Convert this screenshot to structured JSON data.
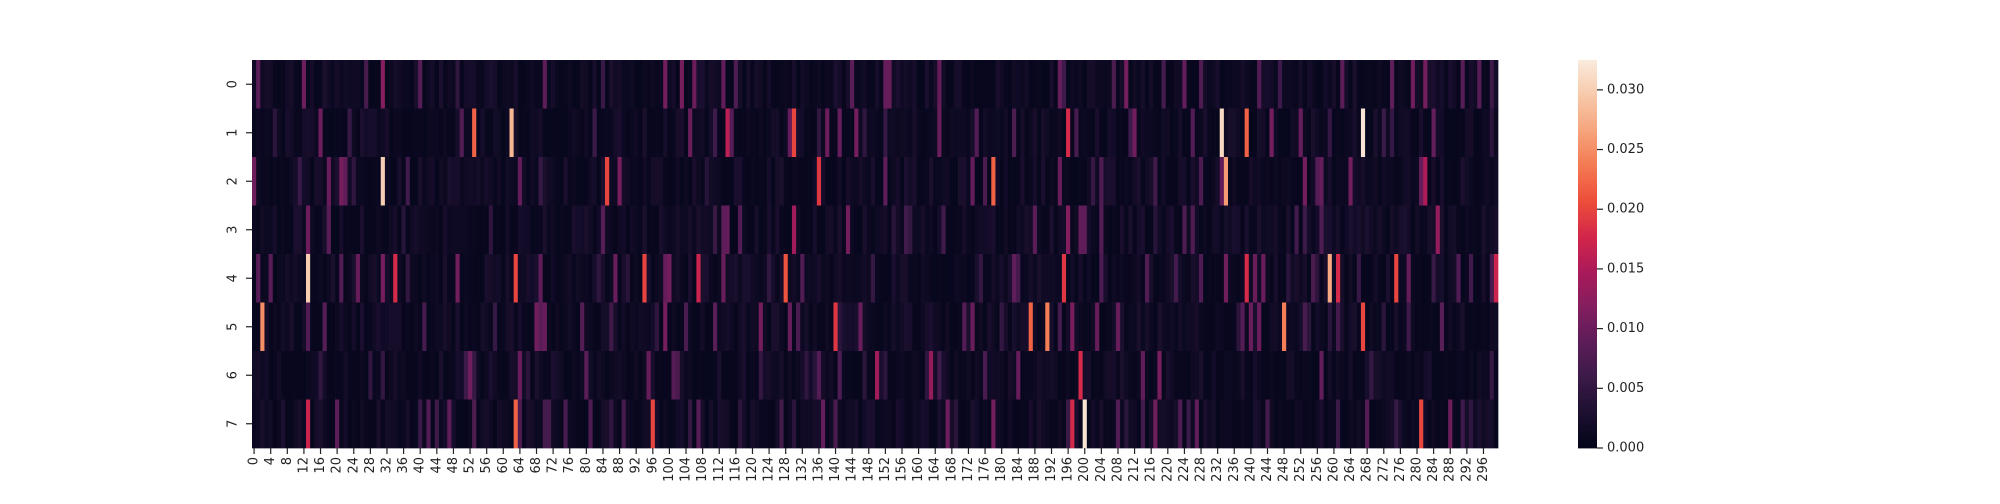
{
  "chart_data": {
    "type": "heatmap",
    "title": "",
    "xlabel": "",
    "ylabel": "",
    "rows": 8,
    "columns": 300,
    "row_labels": [
      "0",
      "1",
      "2",
      "3",
      "4",
      "5",
      "6",
      "7"
    ],
    "x_tick_labels": [
      "0",
      "4",
      "8",
      "12",
      "16",
      "20",
      "24",
      "28",
      "32",
      "36",
      "40",
      "44",
      "48",
      "52",
      "56",
      "60",
      "64",
      "68",
      "72",
      "76",
      "80",
      "84",
      "88",
      "92",
      "96",
      "100",
      "104",
      "108",
      "112",
      "116",
      "120",
      "124",
      "128",
      "132",
      "136",
      "140",
      "144",
      "148",
      "152",
      "156",
      "160",
      "164",
      "168",
      "172",
      "176",
      "180",
      "184",
      "188",
      "192",
      "196",
      "200",
      "204",
      "208",
      "212",
      "216",
      "220",
      "224",
      "228",
      "232",
      "236",
      "240",
      "244",
      "248",
      "252",
      "256",
      "260",
      "264",
      "268",
      "272",
      "276",
      "280",
      "284",
      "288",
      "292",
      "296"
    ],
    "colorbar": {
      "colormap": "rocket",
      "vmin": 0.0,
      "vmax": 0.0325,
      "tick_labels": [
        "0.000",
        "0.005",
        "0.010",
        "0.015",
        "0.020",
        "0.025",
        "0.030"
      ],
      "tick_values": [
        0.0,
        0.005,
        0.01,
        0.015,
        0.02,
        0.025,
        0.03
      ]
    },
    "colormap_stops": [
      "#03051a",
      "#1d1030",
      "#3b1a48",
      "#5c1d59",
      "#831e5f",
      "#ab1a5a",
      "#d3264a",
      "#ed4e3a",
      "#f47a52",
      "#f6a47c",
      "#f7c9aa",
      "#faebdd"
    ],
    "base_level": 0.0015,
    "highlights": [
      {
        "row": 0,
        "col": 31,
        "value": 0.012
      },
      {
        "row": 0,
        "col": 106,
        "value": 0.01
      },
      {
        "row": 1,
        "col": 53,
        "value": 0.022
      },
      {
        "row": 1,
        "col": 62,
        "value": 0.028
      },
      {
        "row": 1,
        "col": 114,
        "value": 0.016
      },
      {
        "row": 1,
        "col": 130,
        "value": 0.02
      },
      {
        "row": 1,
        "col": 196,
        "value": 0.018
      },
      {
        "row": 1,
        "col": 233,
        "value": 0.031
      },
      {
        "row": 1,
        "col": 239,
        "value": 0.022
      },
      {
        "row": 1,
        "col": 267,
        "value": 0.032
      },
      {
        "row": 2,
        "col": 31,
        "value": 0.03
      },
      {
        "row": 2,
        "col": 85,
        "value": 0.02
      },
      {
        "row": 2,
        "col": 136,
        "value": 0.019
      },
      {
        "row": 2,
        "col": 178,
        "value": 0.022
      },
      {
        "row": 2,
        "col": 234,
        "value": 0.026
      },
      {
        "row": 2,
        "col": 282,
        "value": 0.015
      },
      {
        "row": 3,
        "col": 130,
        "value": 0.014
      },
      {
        "row": 3,
        "col": 196,
        "value": 0.012
      },
      {
        "row": 3,
        "col": 285,
        "value": 0.013
      },
      {
        "row": 4,
        "col": 13,
        "value": 0.03
      },
      {
        "row": 4,
        "col": 34,
        "value": 0.018
      },
      {
        "row": 4,
        "col": 63,
        "value": 0.02
      },
      {
        "row": 4,
        "col": 94,
        "value": 0.02
      },
      {
        "row": 4,
        "col": 107,
        "value": 0.017
      },
      {
        "row": 4,
        "col": 128,
        "value": 0.021
      },
      {
        "row": 4,
        "col": 195,
        "value": 0.019
      },
      {
        "row": 4,
        "col": 239,
        "value": 0.018
      },
      {
        "row": 4,
        "col": 259,
        "value": 0.027
      },
      {
        "row": 4,
        "col": 261,
        "value": 0.018
      },
      {
        "row": 4,
        "col": 275,
        "value": 0.02
      },
      {
        "row": 4,
        "col": 299,
        "value": 0.017
      },
      {
        "row": 5,
        "col": 2,
        "value": 0.025
      },
      {
        "row": 5,
        "col": 140,
        "value": 0.019
      },
      {
        "row": 5,
        "col": 187,
        "value": 0.022
      },
      {
        "row": 5,
        "col": 191,
        "value": 0.024
      },
      {
        "row": 5,
        "col": 248,
        "value": 0.024
      },
      {
        "row": 5,
        "col": 267,
        "value": 0.02
      },
      {
        "row": 6,
        "col": 150,
        "value": 0.014
      },
      {
        "row": 6,
        "col": 163,
        "value": 0.013
      },
      {
        "row": 6,
        "col": 199,
        "value": 0.018
      },
      {
        "row": 7,
        "col": 13,
        "value": 0.017
      },
      {
        "row": 7,
        "col": 63,
        "value": 0.022
      },
      {
        "row": 7,
        "col": 96,
        "value": 0.02
      },
      {
        "row": 7,
        "col": 197,
        "value": 0.018
      },
      {
        "row": 7,
        "col": 200,
        "value": 0.032
      },
      {
        "row": 7,
        "col": 281,
        "value": 0.02
      }
    ]
  }
}
